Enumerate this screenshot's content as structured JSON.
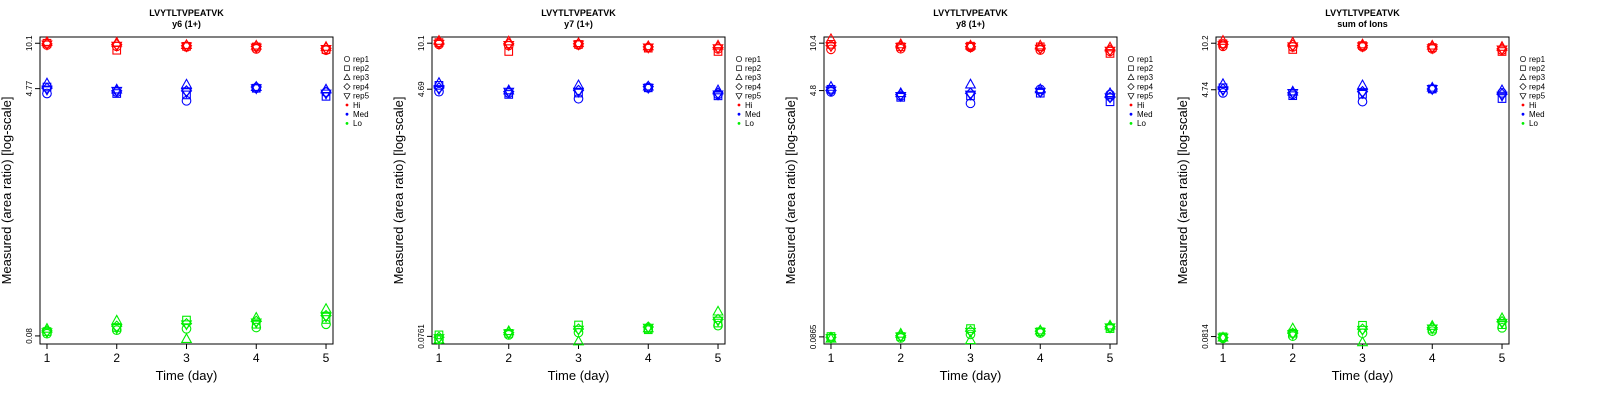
{
  "chart_data": [
    {
      "type": "scatter",
      "title": "LVYTLTVPEATVK",
      "subtitle": "y6 (1+)",
      "xlabel": "Time (day)",
      "ylabel": "Measured (area ratio) [log-scale]",
      "log_scale_y": true,
      "x": [
        1,
        2,
        3,
        4,
        5
      ],
      "xlim": [
        0.9,
        5.1
      ],
      "ylim": [
        0.07,
        11.2
      ],
      "y_ticks": [
        0.08,
        4.77,
        10.1
      ],
      "y_tick_labels": [
        "0.08",
        "4.77",
        "10.1"
      ],
      "legend": [
        "rep1",
        "rep2",
        "rep3",
        "rep4",
        "rep5",
        "Hi",
        "Med",
        "Lo"
      ],
      "legend_position": "right",
      "series": [
        {
          "name": "Hi",
          "color": "#ff0000",
          "reps": {
            "rep1": [
              9.8,
              9.6,
              9.5,
              9.2,
              9.0
            ],
            "rep2": [
              10.1,
              9.0,
              9.6,
              9.5,
              9.1
            ],
            "rep3": [
              10.3,
              10.2,
              9.8,
              9.7,
              9.5
            ],
            "rep4": [
              10.0,
              9.9,
              9.7,
              9.6,
              9.3
            ],
            "rep5": [
              9.9,
              9.7,
              9.6,
              9.4,
              9.2
            ]
          }
        },
        {
          "name": "Med",
          "color": "#0000ff",
          "reps": {
            "rep1": [
              4.4,
              4.5,
              3.9,
              4.8,
              4.5
            ],
            "rep2": [
              4.9,
              4.4,
              4.3,
              4.8,
              4.2
            ],
            "rep3": [
              5.2,
              4.7,
              5.1,
              4.9,
              4.7
            ],
            "rep4": [
              4.8,
              4.6,
              4.6,
              4.9,
              4.5
            ],
            "rep5": [
              4.7,
              4.6,
              4.5,
              4.8,
              4.4
            ]
          }
        },
        {
          "name": "Lo",
          "color": "#00ee00",
          "reps": {
            "rep1": [
              0.083,
              0.088,
              0.09,
              0.092,
              0.097
            ],
            "rep2": [
              0.086,
              0.092,
              0.104,
              0.097,
              0.105
            ],
            "rep3": [
              0.09,
              0.103,
              0.076,
              0.108,
              0.125
            ],
            "rep4": [
              0.087,
              0.094,
              0.098,
              0.102,
              0.112
            ],
            "rep5": [
              0.085,
              0.091,
              0.097,
              0.1,
              0.11
            ]
          }
        }
      ]
    },
    {
      "type": "scatter",
      "title": "LVYTLTVPEATVK",
      "subtitle": "y7 (1+)",
      "xlabel": "Time (day)",
      "ylabel": "Measured (area ratio) [log-scale]",
      "log_scale_y": true,
      "x": [
        1,
        2,
        3,
        4,
        5
      ],
      "xlim": [
        0.9,
        5.1
      ],
      "ylim": [
        0.067,
        11.2
      ],
      "y_ticks": [
        0.0761,
        4.69,
        10.1
      ],
      "y_tick_labels": [
        "0.0761",
        "4.69",
        "10.1"
      ],
      "legend": [
        "rep1",
        "rep2",
        "rep3",
        "rep4",
        "rep5",
        "Hi",
        "Med",
        "Lo"
      ],
      "legend_position": "right",
      "series": [
        {
          "name": "Hi",
          "color": "#ff0000",
          "reps": {
            "rep1": [
              9.9,
              9.7,
              9.8,
              9.4,
              9.2
            ],
            "rep2": [
              10.2,
              8.8,
              9.9,
              9.3,
              8.8
            ],
            "rep3": [
              10.5,
              10.4,
              10.1,
              9.6,
              9.7
            ],
            "rep4": [
              10.1,
              10.0,
              10.0,
              9.5,
              9.4
            ],
            "rep5": [
              10.0,
              9.8,
              9.9,
              9.4,
              9.3
            ]
          }
        },
        {
          "name": "Med",
          "color": "#0000ff",
          "reps": {
            "rep1": [
              4.5,
              4.4,
              4.0,
              4.8,
              4.3
            ],
            "rep2": [
              5.0,
              4.3,
              4.4,
              4.8,
              4.2
            ],
            "rep3": [
              5.2,
              4.6,
              5.0,
              4.9,
              4.6
            ],
            "rep4": [
              4.8,
              4.5,
              4.6,
              4.9,
              4.4
            ],
            "rep5": [
              4.7,
              4.5,
              4.5,
              4.8,
              4.3
            ]
          }
        },
        {
          "name": "Lo",
          "color": "#00ee00",
          "reps": {
            "rep1": [
              0.072,
              0.078,
              0.081,
              0.086,
              0.091
            ],
            "rep2": [
              0.078,
              0.08,
              0.092,
              0.085,
              0.095
            ],
            "rep3": [
              0.072,
              0.083,
              0.07,
              0.087,
              0.115
            ],
            "rep4": [
              0.075,
              0.081,
              0.086,
              0.089,
              0.101
            ],
            "rep5": [
              0.074,
              0.08,
              0.085,
              0.088,
              0.099
            ]
          }
        }
      ]
    },
    {
      "type": "scatter",
      "title": "LVYTLTVPEATVK",
      "subtitle": "y8 (1+)",
      "xlabel": "Time (day)",
      "ylabel": "Measured (area ratio) [log-scale]",
      "log_scale_y": true,
      "x": [
        1,
        2,
        3,
        4,
        5
      ],
      "xlim": [
        0.9,
        5.1
      ],
      "ylim": [
        0.077,
        11.5
      ],
      "y_ticks": [
        0.0865,
        4.8,
        10.4
      ],
      "y_tick_labels": [
        "0.0865",
        "4.8",
        "10.4"
      ],
      "legend": [
        "rep1",
        "rep2",
        "rep3",
        "rep4",
        "rep5",
        "Hi",
        "Med",
        "Lo"
      ],
      "legend_position": "right",
      "series": [
        {
          "name": "Hi",
          "color": "#ff0000",
          "reps": {
            "rep1": [
              9.4,
              9.5,
              9.7,
              9.3,
              9.1
            ],
            "rep2": [
              10.2,
              9.8,
              9.9,
              9.8,
              8.8
            ],
            "rep3": [
              11.1,
              10.2,
              10.0,
              10.0,
              9.7
            ],
            "rep4": [
              10.0,
              9.9,
              9.8,
              9.6,
              9.3
            ],
            "rep5": [
              9.9,
              9.8,
              9.8,
              9.5,
              9.2
            ]
          }
        },
        {
          "name": "Med",
          "color": "#0000ff",
          "reps": {
            "rep1": [
              4.7,
              4.4,
              3.9,
              4.9,
              4.5
            ],
            "rep2": [
              4.9,
              4.3,
              4.4,
              4.6,
              4.0
            ],
            "rep3": [
              5.1,
              4.6,
              5.3,
              4.9,
              4.6
            ],
            "rep4": [
              4.8,
              4.5,
              4.6,
              4.7,
              4.3
            ],
            "rep5": [
              4.8,
              4.4,
              4.5,
              4.7,
              4.3
            ]
          }
        },
        {
          "name": "Lo",
          "color": "#00ee00",
          "reps": {
            "rep1": [
              0.085,
              0.085,
              0.09,
              0.092,
              0.101
            ],
            "rep2": [
              0.087,
              0.087,
              0.099,
              0.094,
              0.099
            ],
            "rep3": [
              0.084,
              0.091,
              0.082,
              0.096,
              0.104
            ],
            "rep4": [
              0.086,
              0.088,
              0.095,
              0.095,
              0.102
            ],
            "rep5": [
              0.085,
              0.087,
              0.094,
              0.094,
              0.101
            ]
          }
        }
      ]
    },
    {
      "type": "scatter",
      "title": "LVYTLTVPEATVK",
      "subtitle": "sum of Ions",
      "xlabel": "Time (day)",
      "ylabel": "Measured (area ratio) [log-scale]",
      "log_scale_y": true,
      "x": [
        1,
        2,
        3,
        4,
        5
      ],
      "xlim": [
        0.9,
        5.1
      ],
      "ylim": [
        0.072,
        11.3
      ],
      "y_ticks": [
        0.0814,
        4.74,
        10.2
      ],
      "y_tick_labels": [
        "0.0814",
        "4.74",
        "10.2"
      ],
      "legend": [
        "rep1",
        "rep2",
        "rep3",
        "rep4",
        "rep5",
        "Hi",
        "Med",
        "Lo"
      ],
      "legend_position": "right",
      "series": [
        {
          "name": "Hi",
          "color": "#ff0000",
          "reps": {
            "rep1": [
              9.7,
              9.6,
              9.6,
              9.3,
              9.1
            ],
            "rep2": [
              10.1,
              9.2,
              9.8,
              9.5,
              8.9
            ],
            "rep3": [
              10.6,
              10.3,
              10.0,
              9.8,
              9.6
            ],
            "rep4": [
              10.0,
              9.9,
              9.8,
              9.6,
              9.3
            ],
            "rep5": [
              9.9,
              9.7,
              9.7,
              9.4,
              9.2
            ]
          }
        },
        {
          "name": "Med",
          "color": "#0000ff",
          "reps": {
            "rep1": [
              4.5,
              4.4,
              3.9,
              4.8,
              4.5
            ],
            "rep2": [
              4.9,
              4.3,
              4.4,
              4.8,
              4.1
            ],
            "rep3": [
              5.2,
              4.6,
              5.1,
              4.9,
              4.7
            ],
            "rep4": [
              4.8,
              4.5,
              4.6,
              4.8,
              4.4
            ],
            "rep5": [
              4.7,
              4.5,
              4.5,
              4.8,
              4.3
            ]
          }
        },
        {
          "name": "Lo",
          "color": "#00ee00",
          "reps": {
            "rep1": [
              0.079,
              0.082,
              0.086,
              0.089,
              0.094
            ],
            "rep2": [
              0.081,
              0.086,
              0.098,
              0.092,
              0.099
            ],
            "rep3": [
              0.08,
              0.093,
              0.074,
              0.097,
              0.11
            ],
            "rep4": [
              0.08,
              0.086,
              0.092,
              0.094,
              0.104
            ],
            "rep5": [
              0.08,
              0.085,
              0.091,
              0.093,
              0.102
            ]
          }
        }
      ]
    }
  ]
}
